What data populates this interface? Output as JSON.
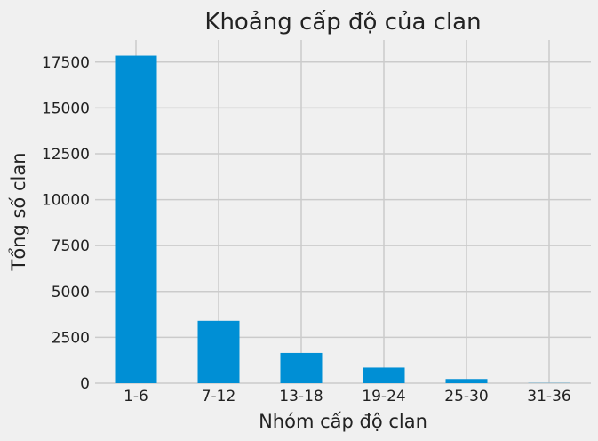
{
  "chart_data": {
    "type": "bar",
    "title": "Khoảng cấp độ của clan",
    "xlabel": "Nhóm cấp độ clan",
    "ylabel": "Tổng số clan",
    "categories": [
      "1-6",
      "7-12",
      "13-18",
      "19-24",
      "25-30",
      "31-36"
    ],
    "values": [
      17850,
      3400,
      1650,
      850,
      230,
      10
    ],
    "ylim": [
      0,
      18700
    ],
    "yticks": [
      0,
      2500,
      5000,
      7500,
      10000,
      12500,
      15000,
      17500
    ],
    "grid": true,
    "bar_color": "#008fd5",
    "background": "#f0f0f0"
  }
}
